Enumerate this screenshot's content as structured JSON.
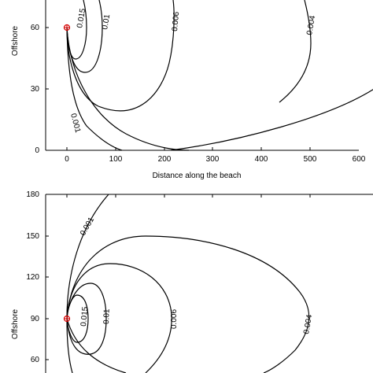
{
  "chart_data": [
    {
      "type": "contour",
      "xlabel": "Distance along the beach",
      "ylabel": "Offshore",
      "xlim": [
        -45,
        600
      ],
      "ylim": [
        0,
        70
      ],
      "xticks": [
        0,
        100,
        200,
        300,
        400,
        500,
        600
      ],
      "yticks": [
        0,
        30,
        60
      ],
      "source_point": {
        "x": 0,
        "y": 60,
        "marker_color": "#d40000"
      },
      "contour_levels": [
        "0.015",
        "0.01",
        "0.006",
        "0.004",
        "0.001"
      ],
      "contours": [
        {
          "level": "0.015",
          "reach_x": 30,
          "range_y": [
            45,
            70
          ]
        },
        {
          "level": "0.01",
          "reach_x": 82,
          "range_y": [
            30,
            70
          ]
        },
        {
          "level": "0.006",
          "reach_x": 210,
          "range_y": [
            10,
            70
          ]
        },
        {
          "level": "0.004",
          "reach_x": 510,
          "range_y": [
            0,
            70
          ]
        },
        {
          "level": "0.001",
          "reach_x": 155,
          "range_y": [
            0,
            70
          ]
        }
      ]
    },
    {
      "type": "contour",
      "xlabel": "",
      "ylabel": "Offshore",
      "xlim": [
        -45,
        600
      ],
      "ylim": [
        50,
        180
      ],
      "xticks": [],
      "yticks": [
        60,
        90,
        120,
        150,
        180
      ],
      "source_point": {
        "x": 0,
        "y": 90,
        "marker_color": "#d40000"
      },
      "contour_levels": [
        "0.015",
        "0.01",
        "0.006",
        "0.004",
        "0.001"
      ],
      "contours": [
        {
          "level": "0.015",
          "reach_x": 35,
          "range_y": [
            75,
            105
          ]
        },
        {
          "level": "0.01",
          "reach_x": 80,
          "range_y": [
            65,
            118
          ]
        },
        {
          "level": "0.006",
          "reach_x": 215,
          "range_y": [
            50,
            130
          ]
        },
        {
          "level": "0.004",
          "reach_x": 500,
          "range_y": [
            50,
            150
          ]
        },
        {
          "level": "0.001",
          "reach_x": 90,
          "range_y": [
            50,
            180
          ]
        }
      ]
    }
  ]
}
